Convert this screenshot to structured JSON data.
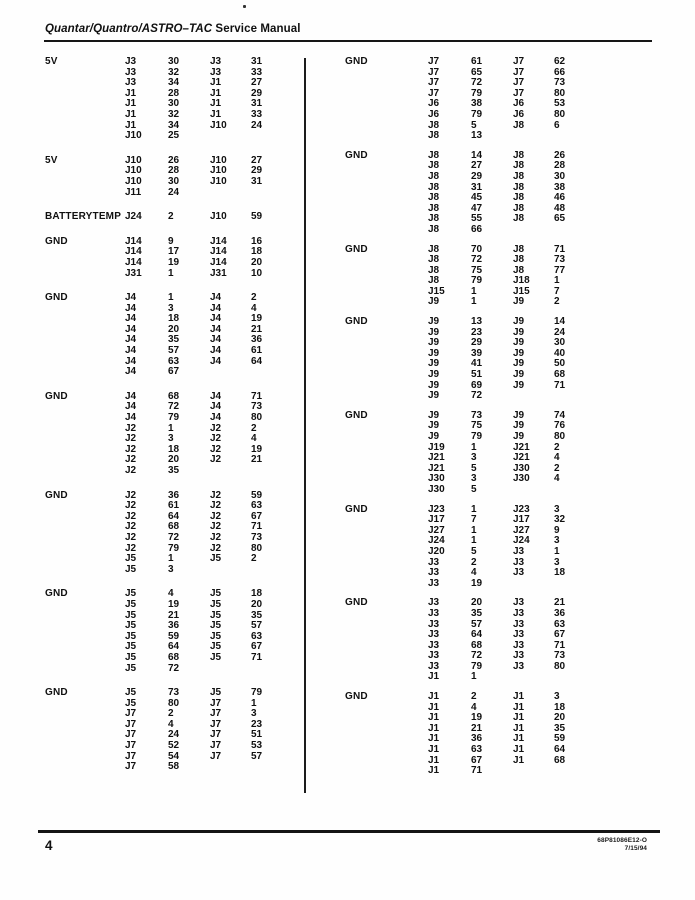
{
  "header": {
    "title_model": "Quantar/Quantro/ASTRO–TAC",
    "title_suffix": " Service Manual"
  },
  "pin_table": {
    "columns": [
      {
        "groups": [
          {
            "signal": "5V",
            "rows": [
              [
                "J3",
                "30",
                "J3",
                "31"
              ],
              [
                "J3",
                "32",
                "J3",
                "33"
              ],
              [
                "J3",
                "34",
                "J1",
                "27"
              ],
              [
                "J1",
                "28",
                "J1",
                "29"
              ],
              [
                "J1",
                "30",
                "J1",
                "31"
              ],
              [
                "J1",
                "32",
                "J1",
                "33"
              ],
              [
                "J1",
                "34",
                "J10",
                "24"
              ],
              [
                "J10",
                "25",
                "",
                ""
              ]
            ]
          },
          {
            "signal": "5V",
            "rows": [
              [
                "J10",
                "26",
                "J10",
                "27"
              ],
              [
                "J10",
                "28",
                "J10",
                "29"
              ],
              [
                "J10",
                "30",
                "J10",
                "31"
              ],
              [
                "J11",
                "24",
                "",
                ""
              ]
            ]
          },
          {
            "signal": "BATTERYTEMP",
            "rows": [
              [
                "J24",
                "2",
                "J10",
                "59"
              ]
            ]
          },
          {
            "signal": "GND",
            "rows": [
              [
                "J14",
                "9",
                "J14",
                "16"
              ],
              [
                "J14",
                "17",
                "J14",
                "18"
              ],
              [
                "J14",
                "19",
                "J14",
                "20"
              ],
              [
                "J31",
                "1",
                "J31",
                "10"
              ]
            ]
          },
          {
            "signal": "GND",
            "rows": [
              [
                "J4",
                "1",
                "J4",
                "2"
              ],
              [
                "J4",
                "3",
                "J4",
                "4"
              ],
              [
                "J4",
                "18",
                "J4",
                "19"
              ],
              [
                "J4",
                "20",
                "J4",
                "21"
              ],
              [
                "J4",
                "35",
                "J4",
                "36"
              ],
              [
                "J4",
                "57",
                "J4",
                "61"
              ],
              [
                "J4",
                "63",
                "J4",
                "64"
              ],
              [
                "J4",
                "67",
                "",
                ""
              ]
            ]
          },
          {
            "signal": "GND",
            "rows": [
              [
                "J4",
                "68",
                "J4",
                "71"
              ],
              [
                "J4",
                "72",
                "J4",
                "73"
              ],
              [
                "J4",
                "79",
                "J4",
                "80"
              ],
              [
                "J2",
                "1",
                "J2",
                "2"
              ],
              [
                "J2",
                "3",
                "J2",
                "4"
              ],
              [
                "J2",
                "18",
                "J2",
                "19"
              ],
              [
                "J2",
                "20",
                "J2",
                "21"
              ],
              [
                "J2",
                "35",
                "",
                ""
              ]
            ]
          },
          {
            "signal": "GND",
            "rows": [
              [
                "J2",
                "36",
                "J2",
                "59"
              ],
              [
                "J2",
                "61",
                "J2",
                "63"
              ],
              [
                "J2",
                "64",
                "J2",
                "67"
              ],
              [
                "J2",
                "68",
                "J2",
                "71"
              ],
              [
                "J2",
                "72",
                "J2",
                "73"
              ],
              [
                "J2",
                "79",
                "J2",
                "80"
              ],
              [
                "J5",
                "1",
                "J5",
                "2"
              ],
              [
                "J5",
                "3",
                "",
                ""
              ]
            ]
          },
          {
            "signal": "GND",
            "rows": [
              [
                "J5",
                "4",
                "J5",
                "18"
              ],
              [
                "J5",
                "19",
                "J5",
                "20"
              ],
              [
                "J5",
                "21",
                "J5",
                "35"
              ],
              [
                "J5",
                "36",
                "J5",
                "57"
              ],
              [
                "J5",
                "59",
                "J5",
                "63"
              ],
              [
                "J5",
                "64",
                "J5",
                "67"
              ],
              [
                "J5",
                "68",
                "J5",
                "71"
              ],
              [
                "J5",
                "72",
                "",
                ""
              ]
            ]
          },
          {
            "signal": "GND",
            "rows": [
              [
                "J5",
                "73",
                "J5",
                "79"
              ],
              [
                "J5",
                "80",
                "J7",
                "1"
              ],
              [
                "J7",
                "2",
                "J7",
                "3"
              ],
              [
                "J7",
                "4",
                "J7",
                "23"
              ],
              [
                "J7",
                "24",
                "J7",
                "51"
              ],
              [
                "J7",
                "52",
                "J7",
                "53"
              ],
              [
                "J7",
                "54",
                "J7",
                "57"
              ],
              [
                "J7",
                "58",
                "",
                ""
              ]
            ]
          }
        ]
      },
      {
        "groups": [
          {
            "signal": "GND",
            "rows": [
              [
                "J7",
                "61",
                "J7",
                "62"
              ],
              [
                "J7",
                "65",
                "J7",
                "66"
              ],
              [
                "J7",
                "72",
                "J7",
                "73"
              ],
              [
                "J7",
                "79",
                "J7",
                "80"
              ],
              [
                "J6",
                "38",
                "J6",
                "53"
              ],
              [
                "J6",
                "79",
                "J6",
                "80"
              ],
              [
                "J8",
                "5",
                "J8",
                "6"
              ],
              [
                "J8",
                "13",
                "",
                ""
              ]
            ]
          },
          {
            "signal": "GND",
            "rows": [
              [
                "J8",
                "14",
                "J8",
                "26"
              ],
              [
                "J8",
                "27",
                "J8",
                "28"
              ],
              [
                "J8",
                "29",
                "J8",
                "30"
              ],
              [
                "J8",
                "31",
                "J8",
                "38"
              ],
              [
                "J8",
                "45",
                "J8",
                "46"
              ],
              [
                "J8",
                "47",
                "J8",
                "48"
              ],
              [
                "J8",
                "55",
                "J8",
                "65"
              ],
              [
                "J8",
                "66",
                "",
                ""
              ]
            ]
          },
          {
            "signal": "GND",
            "rows": [
              [
                "J8",
                "70",
                "J8",
                "71"
              ],
              [
                "J8",
                "72",
                "J8",
                "73"
              ],
              [
                "J8",
                "75",
                "J8",
                "77"
              ],
              [
                "J8",
                "79",
                "J18",
                "1"
              ],
              [
                "J15",
                "1",
                "J15",
                "7"
              ],
              [
                "J9",
                "1",
                "J9",
                "2"
              ]
            ]
          },
          {
            "signal": "GND",
            "rows": [
              [
                "J9",
                "13",
                "J9",
                "14"
              ],
              [
                "J9",
                "23",
                "J9",
                "24"
              ],
              [
                "J9",
                "29",
                "J9",
                "30"
              ],
              [
                "J9",
                "39",
                "J9",
                "40"
              ],
              [
                "J9",
                "41",
                "J9",
                "50"
              ],
              [
                "J9",
                "51",
                "J9",
                "68"
              ],
              [
                "J9",
                "69",
                "J9",
                "71"
              ],
              [
                "J9",
                "72",
                "",
                ""
              ]
            ]
          },
          {
            "signal": "GND",
            "rows": [
              [
                "J9",
                "73",
                "J9",
                "74"
              ],
              [
                "J9",
                "75",
                "J9",
                "76"
              ],
              [
                "J9",
                "79",
                "J9",
                "80"
              ],
              [
                "J19",
                "1",
                "J21",
                "2"
              ],
              [
                "J21",
                "3",
                "J21",
                "4"
              ],
              [
                "J21",
                "5",
                "J30",
                "2"
              ],
              [
                "J30",
                "3",
                "J30",
                "4"
              ],
              [
                "J30",
                "5",
                "",
                ""
              ]
            ]
          },
          {
            "signal": "GND",
            "rows": [
              [
                "J23",
                "1",
                "J23",
                "3"
              ],
              [
                "J17",
                "7",
                "J17",
                "32"
              ],
              [
                "J27",
                "1",
                "J27",
                "9"
              ],
              [
                "J24",
                "1",
                "J24",
                "3"
              ],
              [
                "J20",
                "5",
                "J3",
                "1"
              ],
              [
                "J3",
                "2",
                "J3",
                "3"
              ],
              [
                "J3",
                "4",
                "J3",
                "18"
              ],
              [
                "J3",
                "19",
                "",
                ""
              ]
            ]
          },
          {
            "signal": "GND",
            "rows": [
              [
                "J3",
                "20",
                "J3",
                "21"
              ],
              [
                "J3",
                "35",
                "J3",
                "36"
              ],
              [
                "J3",
                "57",
                "J3",
                "63"
              ],
              [
                "J3",
                "64",
                "J3",
                "67"
              ],
              [
                "J3",
                "68",
                "J3",
                "71"
              ],
              [
                "J3",
                "72",
                "J3",
                "73"
              ],
              [
                "J3",
                "79",
                "J3",
                "80"
              ],
              [
                "J1",
                "1",
                "",
                ""
              ]
            ]
          },
          {
            "signal": "GND",
            "rows": [
              [
                "J1",
                "2",
                "J1",
                "3"
              ],
              [
                "J1",
                "4",
                "J1",
                "18"
              ],
              [
                "J1",
                "19",
                "J1",
                "20"
              ],
              [
                "J1",
                "21",
                "J1",
                "35"
              ],
              [
                "J1",
                "36",
                "J1",
                "59"
              ],
              [
                "J1",
                "63",
                "J1",
                "64"
              ],
              [
                "J1",
                "67",
                "J1",
                "68"
              ],
              [
                "J1",
                "71",
                "",
                ""
              ]
            ]
          }
        ]
      }
    ]
  },
  "footer": {
    "page_number": "4",
    "doc_number": "68P81086E12-O",
    "date": "7/15/94"
  }
}
